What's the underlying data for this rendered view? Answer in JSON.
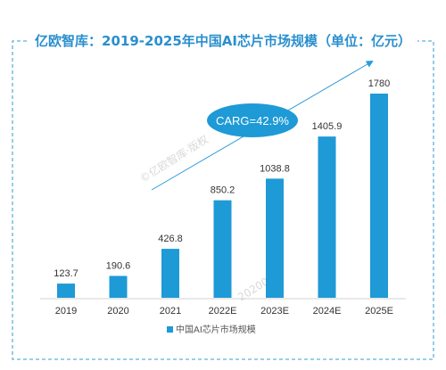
{
  "chart_data": {
    "type": "bar",
    "title": "亿欧智库：2019-2025年中国AI芯片市场规模（单位：亿元）",
    "categories": [
      "2019",
      "2020",
      "2021",
      "2022E",
      "2023E",
      "2024E",
      "2025E"
    ],
    "series": [
      {
        "name": "中国AI芯片市场规模",
        "values": [
          123.7,
          190.6,
          426.8,
          850.2,
          1038.8,
          1405.9,
          1780
        ]
      }
    ],
    "value_labels": [
      "123.7",
      "190.6",
      "426.8",
      "850.2",
      "1038.8",
      "1405.9",
      "1780"
    ],
    "annotation": "CARG=42.9%",
    "ylim": [
      0,
      1780
    ],
    "legend_position": "bottom",
    "grid": false,
    "colors": {
      "bar": "#1e9ad6",
      "title": "#2a8fce",
      "ellipse": "#1e9ad6",
      "frame": "#5fb0dc"
    }
  },
  "watermarks": [
    "©亿欧智库·版权",
    "20200"
  ]
}
